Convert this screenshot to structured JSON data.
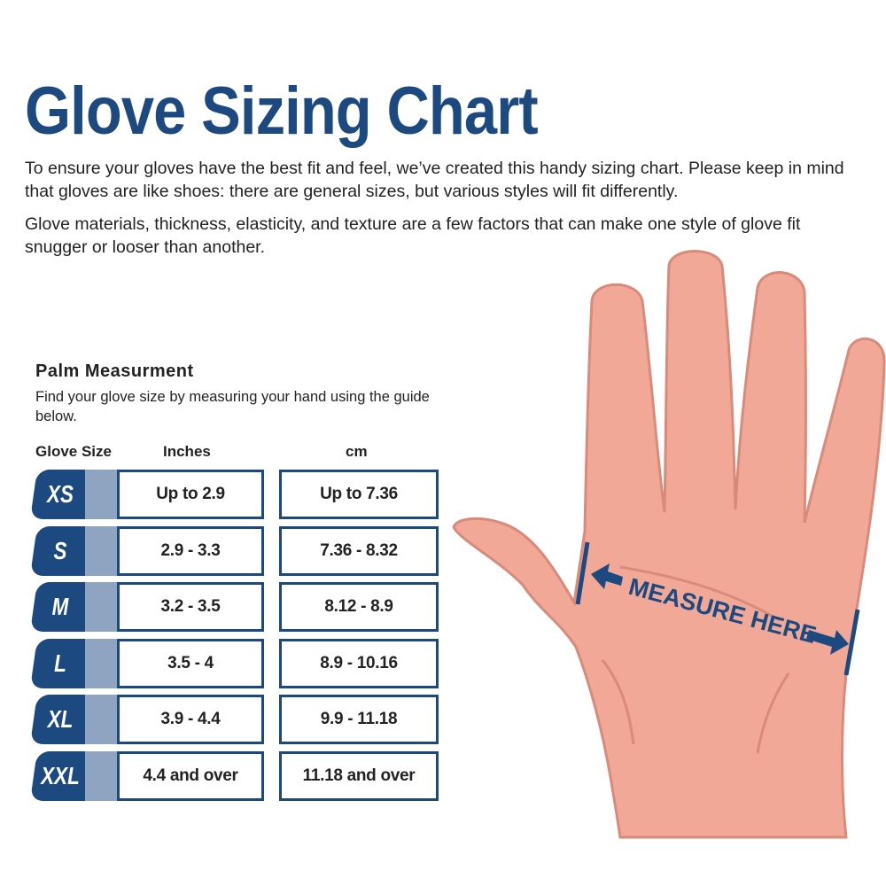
{
  "title": "Glove Sizing Chart",
  "intro": [
    "To ensure your gloves have the best fit and feel, we’ve created this handy sizing chart. Please keep in mind that gloves are like shoes: there are general sizes, but various styles will fit differently.",
    "Glove materials, thickness, elasticity, and texture are a few factors that can make one style of glove fit snugger or looser than another."
  ],
  "palm": {
    "title": "Palm Measurment",
    "description": "Find your glove size by measuring your hand using the guide below."
  },
  "table": {
    "headers": [
      "Glove Size",
      "Inches",
      "cm"
    ],
    "rows": [
      {
        "size": "XS",
        "inches": "Up to 2.9",
        "cm": "Up to 7.36"
      },
      {
        "size": "S",
        "inches": "2.9 - 3.3",
        "cm": "7.36 - 8.32"
      },
      {
        "size": "M",
        "inches": "3.2 - 3.5",
        "cm": "8.12 - 8.9"
      },
      {
        "size": "L",
        "inches": "3.5 - 4",
        "cm": "8.9 - 10.16"
      },
      {
        "size": "XL",
        "inches": "3.9 - 4.4",
        "cm": "9.9 - 11.18"
      },
      {
        "size": "XXL",
        "inches": "4.4 and over",
        "cm": "11.18 and over"
      }
    ]
  },
  "hand": {
    "label": "MEASURE HERE"
  },
  "colors": {
    "navy": "#1c4a80",
    "tab_light": "#8fa4c1",
    "skin": "#f2a896",
    "skin_outline": "#d98b7b"
  }
}
